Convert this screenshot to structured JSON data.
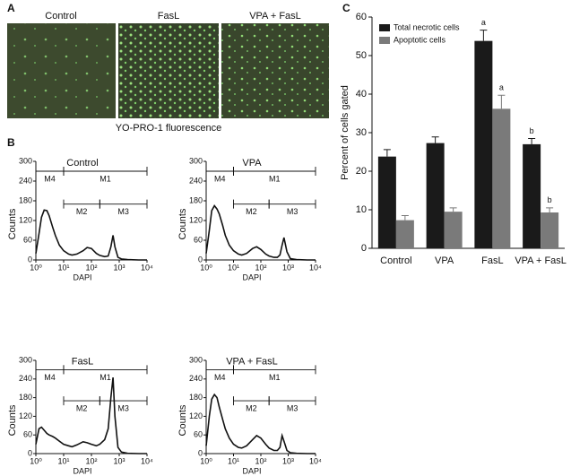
{
  "panel_labels": [
    "A",
    "B",
    "C"
  ],
  "panel_a": {
    "labels": [
      "Control",
      "FasL",
      "VPA + FasL"
    ],
    "caption": "YO-PRO-1 fluorescence"
  },
  "chart_data": [
    {
      "type": "line",
      "title": "Control",
      "x_label": "DAPI",
      "y_label": "Counts",
      "log_x": true,
      "color": "#111111",
      "xlim": [
        1,
        10000
      ],
      "ylim": [
        0,
        300
      ],
      "xticks": [
        {
          "value": 1,
          "label": "10⁰"
        },
        {
          "value": 10,
          "label": "10¹"
        },
        {
          "value": 100,
          "label": "10²"
        },
        {
          "value": 1000,
          "label": "10³"
        },
        {
          "value": 10000,
          "label": "10⁴"
        }
      ],
      "yticks": [
        0,
        60,
        120,
        180,
        240,
        300
      ],
      "gates": [
        {
          "label": "M4",
          "range": [
            1,
            10
          ],
          "y": 270
        },
        {
          "label": "M1",
          "range": [
            10,
            10000
          ],
          "y": 270
        },
        {
          "label": "M2",
          "range": [
            10,
            200
          ],
          "y": 170
        },
        {
          "label": "M3",
          "range": [
            200,
            10000
          ],
          "y": 170
        }
      ],
      "x": [
        1,
        1.3,
        1.6,
        2,
        2.5,
        3,
        4,
        5,
        7,
        10,
        15,
        20,
        30,
        50,
        70,
        100,
        150,
        200,
        300,
        400,
        500,
        600,
        700,
        900,
        1200,
        2000,
        5000,
        10000
      ],
      "values": [
        20,
        80,
        130,
        152,
        150,
        135,
        100,
        75,
        45,
        28,
        18,
        15,
        18,
        28,
        38,
        35,
        20,
        14,
        10,
        12,
        40,
        75,
        40,
        8,
        3,
        1,
        0,
        0
      ]
    },
    {
      "type": "line",
      "title": "VPA",
      "x_label": "DAPI",
      "y_label": "Counts",
      "log_x": true,
      "color": "#111111",
      "xlim": [
        1,
        10000
      ],
      "ylim": [
        0,
        300
      ],
      "xticks": [
        {
          "value": 1,
          "label": "10⁰"
        },
        {
          "value": 10,
          "label": "10¹"
        },
        {
          "value": 100,
          "label": "10²"
        },
        {
          "value": 1000,
          "label": "10³"
        },
        {
          "value": 10000,
          "label": "10⁴"
        }
      ],
      "yticks": [
        0,
        60,
        120,
        180,
        240,
        300
      ],
      "gates": [
        {
          "label": "M4",
          "range": [
            1,
            10
          ],
          "y": 270
        },
        {
          "label": "M1",
          "range": [
            10,
            10000
          ],
          "y": 270
        },
        {
          "label": "M2",
          "range": [
            10,
            200
          ],
          "y": 170
        },
        {
          "label": "M3",
          "range": [
            200,
            10000
          ],
          "y": 170
        }
      ],
      "x": [
        1,
        1.3,
        1.6,
        2,
        2.5,
        3,
        4,
        5,
        7,
        10,
        15,
        20,
        30,
        50,
        70,
        100,
        150,
        200,
        300,
        400,
        500,
        600,
        700,
        900,
        1200,
        2000,
        5000,
        10000
      ],
      "values": [
        20,
        90,
        150,
        165,
        155,
        140,
        105,
        75,
        45,
        28,
        18,
        15,
        20,
        35,
        40,
        32,
        18,
        12,
        8,
        8,
        15,
        45,
        68,
        25,
        4,
        1,
        0,
        0
      ]
    },
    {
      "type": "line",
      "title": "FasL",
      "x_label": "DAPI",
      "y_label": "Counts",
      "log_x": true,
      "color": "#111111",
      "xlim": [
        1,
        10000
      ],
      "ylim": [
        0,
        300
      ],
      "xticks": [
        {
          "value": 1,
          "label": "10⁰"
        },
        {
          "value": 10,
          "label": "10¹"
        },
        {
          "value": 100,
          "label": "10²"
        },
        {
          "value": 1000,
          "label": "10³"
        },
        {
          "value": 10000,
          "label": "10⁴"
        }
      ],
      "yticks": [
        0,
        60,
        120,
        180,
        240,
        300
      ],
      "gates": [
        {
          "label": "M4",
          "range": [
            1,
            10
          ],
          "y": 270
        },
        {
          "label": "M1",
          "range": [
            10,
            10000
          ],
          "y": 270
        },
        {
          "label": "M2",
          "range": [
            10,
            200
          ],
          "y": 170
        },
        {
          "label": "M3",
          "range": [
            200,
            10000
          ],
          "y": 170
        }
      ],
      "x": [
        1,
        1.3,
        1.6,
        2,
        2.5,
        3,
        4,
        5,
        7,
        10,
        15,
        20,
        30,
        50,
        70,
        100,
        150,
        200,
        300,
        400,
        500,
        600,
        700,
        900,
        1200,
        2000,
        5000,
        10000
      ],
      "values": [
        30,
        80,
        85,
        75,
        65,
        60,
        55,
        50,
        40,
        30,
        25,
        22,
        28,
        38,
        35,
        30,
        25,
        30,
        45,
        80,
        180,
        245,
        120,
        20,
        5,
        1,
        0,
        0
      ]
    },
    {
      "type": "line",
      "title": "VPA + FasL",
      "x_label": "DAPI",
      "y_label": "Counts",
      "log_x": true,
      "color": "#111111",
      "xlim": [
        1,
        10000
      ],
      "ylim": [
        0,
        300
      ],
      "xticks": [
        {
          "value": 1,
          "label": "10⁰"
        },
        {
          "value": 10,
          "label": "10¹"
        },
        {
          "value": 100,
          "label": "10²"
        },
        {
          "value": 1000,
          "label": "10³"
        },
        {
          "value": 10000,
          "label": "10⁴"
        }
      ],
      "yticks": [
        0,
        60,
        120,
        180,
        240,
        300
      ],
      "gates": [
        {
          "label": "M4",
          "range": [
            1,
            10
          ],
          "y": 270
        },
        {
          "label": "M1",
          "range": [
            10,
            10000
          ],
          "y": 270
        },
        {
          "label": "M2",
          "range": [
            10,
            200
          ],
          "y": 170
        },
        {
          "label": "M3",
          "range": [
            200,
            10000
          ],
          "y": 170
        }
      ],
      "x": [
        1,
        1.3,
        1.6,
        2,
        2.5,
        3,
        4,
        5,
        7,
        10,
        15,
        20,
        30,
        50,
        70,
        100,
        150,
        200,
        300,
        400,
        500,
        600,
        700,
        900,
        1200,
        2000,
        5000,
        10000
      ],
      "values": [
        25,
        120,
        175,
        190,
        180,
        150,
        110,
        80,
        50,
        30,
        20,
        18,
        25,
        45,
        58,
        50,
        30,
        18,
        10,
        10,
        20,
        58,
        40,
        10,
        3,
        1,
        0,
        0
      ]
    },
    {
      "type": "bar",
      "y_label": "Percent of cells gated",
      "legend": "upper-left",
      "categories": [
        "Control",
        "VPA",
        "FasL",
        "VPA + FasL"
      ],
      "ylim": [
        0,
        60
      ],
      "yticks": [
        0,
        10,
        20,
        30,
        40,
        50,
        60
      ],
      "series": [
        {
          "name": "Total necrotic cells",
          "color": "#1a1a1a",
          "values": [
            23.8,
            27.3,
            53.8,
            27.0
          ],
          "errors": [
            1.8,
            1.6,
            2.8,
            1.5
          ],
          "annotations": [
            null,
            null,
            "a",
            "b"
          ]
        },
        {
          "name": "Apoptotic cells",
          "color": "#7a7a7a",
          "values": [
            7.3,
            9.5,
            36.2,
            9.3
          ],
          "errors": [
            1.2,
            1.0,
            3.5,
            1.2
          ],
          "annotations": [
            null,
            null,
            "a",
            "b"
          ]
        }
      ]
    }
  ]
}
